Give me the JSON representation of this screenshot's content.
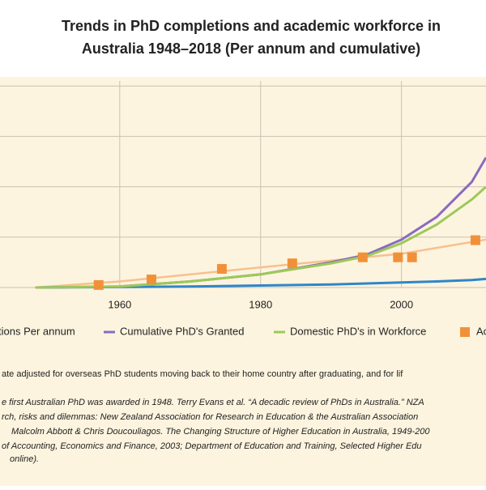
{
  "chart_data": {
    "type": "line",
    "title": [
      "Trends in PhD completions and academic workforce in",
      "Australia 1948–2018 (Per annum and cumulative)"
    ],
    "xlim": [
      1943,
      2012
    ],
    "xticks": [
      1960,
      1980,
      2000
    ],
    "ylim": [
      0,
      4.1
    ],
    "yticks": [
      0,
      1,
      2,
      3,
      4
    ],
    "grid": true,
    "x": [
      1948,
      1960,
      1970,
      1980,
      1990,
      1995,
      2000,
      2005,
      2010,
      2012
    ],
    "series": [
      {
        "name": "tions Per annum",
        "type": "line",
        "color": "#2f86c8",
        "values": [
          0,
          0.01,
          0.02,
          0.04,
          0.06,
          0.08,
          0.1,
          0.12,
          0.15,
          0.17
        ]
      },
      {
        "name": "Cumulative PhD's Granted",
        "type": "line",
        "color": "#8a6bbf",
        "values": [
          0,
          0.02,
          0.12,
          0.26,
          0.5,
          0.65,
          0.95,
          1.4,
          2.1,
          2.58
        ]
      },
      {
        "name": "Domestic PhD's in Workforce",
        "type": "line",
        "color": "#9cc95a",
        "values": [
          0,
          0.02,
          0.12,
          0.26,
          0.48,
          0.62,
          0.88,
          1.25,
          1.75,
          2.0
        ]
      },
      {
        "name": "Ac",
        "type": "scatter",
        "color": "#f0913a",
        "x": [
          1957,
          1964.5,
          1974.5,
          1984.5,
          1994.5,
          1999.5,
          2001.5,
          2010.5
        ],
        "values": [
          0.05,
          0.16,
          0.37,
          0.48,
          0.6,
          0.6,
          0.6,
          0.94
        ]
      }
    ],
    "trend": {
      "color": "#f7c08f",
      "x": [
        1948,
        1960,
        1980,
        2000,
        2012
      ],
      "values": [
        0,
        0.12,
        0.4,
        0.67,
        0.95
      ]
    },
    "notes": [
      "ate adjusted for overseas PhD students moving back to their home country after graduating, and for lif",
      "e first Australian PhD was awarded in 1948. Terry Evans et al. “A decadic review of PhDs in Australia.” NZA",
      "rch, risks and dilemmas: New Zealand Association for Research in Education & the Australian Association",
      "Malcolm Abbott & Chris Doucouliagos. The Changing Structure of Higher Education in Australia, 1949-200",
      "of Accounting, Economics and Finance, 2003; Department of Education and Training, Selected Higher Edu",
      "online)."
    ]
  }
}
